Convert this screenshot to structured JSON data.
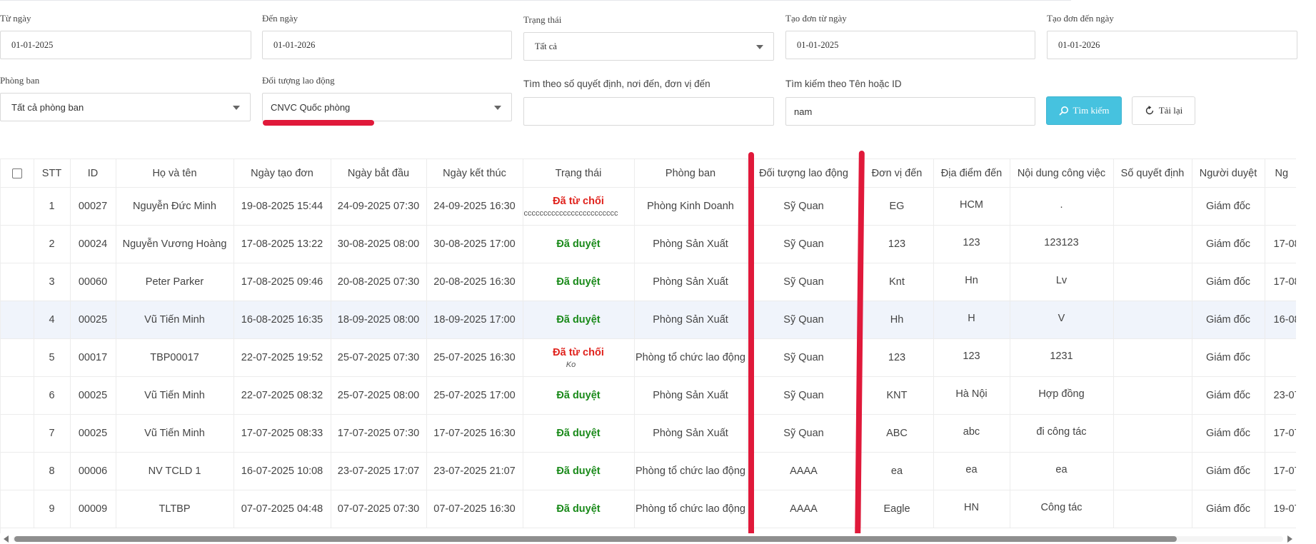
{
  "filters": {
    "from_date": {
      "label": "Từ ngày",
      "value": "01-01-2025"
    },
    "to_date": {
      "label": "Đến ngày",
      "value": "01-01-2026"
    },
    "status": {
      "label": "Trạng thái",
      "value": "Tất cả"
    },
    "created_from": {
      "label": "Tạo đơn từ ngày",
      "value": "01-01-2025"
    },
    "created_to": {
      "label": "Tạo đơn đến ngày",
      "value": "01-01-2026"
    },
    "department": {
      "label": "Phòng ban",
      "value": "Tất cả phòng ban"
    },
    "labor_object": {
      "label": "Đối tượng lao động",
      "value": "CNVC Quốc phòng"
    },
    "search_decision": {
      "label": "Tìm theo số quyết định, nơi đến, đơn vị đến",
      "value": ""
    },
    "search_name": {
      "label": "Tìm kiếm theo Tên hoặc ID",
      "value": "nam"
    }
  },
  "buttons": {
    "search": "Tìm kiếm",
    "reload": "Tải lại"
  },
  "table": {
    "headers": [
      "STT",
      "ID",
      "Họ và tên",
      "Ngày tạo đơn",
      "Ngày bắt đầu",
      "Ngày kết thúc",
      "Trạng thái",
      "Phòng ban",
      "Đối tượng lao động",
      "Đơn vị đến",
      "Địa điểm đến",
      "Nội dung công việc",
      "Số quyết định",
      "Người duyệt",
      "Ng"
    ],
    "rows": [
      {
        "stt": "1",
        "id": "00027",
        "name": "Nguyễn Đức Minh",
        "created": "19-08-2025 15:44",
        "start": "24-09-2025 07:30",
        "end": "24-09-2025 16:30",
        "status": "Đã từ chối",
        "status_note": "cccccccccccccccccccccccc",
        "dept": "Phòng Kinh Doanh",
        "object": "Sỹ Quan",
        "unit": "EG",
        "place": "HCM",
        "content": ".",
        "decision": "",
        "approver": "Giám đốc",
        "extra": ""
      },
      {
        "stt": "2",
        "id": "00024",
        "name": "Nguyễn Vương Hoàng",
        "created": "17-08-2025 13:22",
        "start": "30-08-2025 08:00",
        "end": "30-08-2025 17:00",
        "status": "Đã duyệt",
        "status_note": "",
        "dept": "Phòng Sản Xuất",
        "object": "Sỹ Quan",
        "unit": "123",
        "place": "123",
        "content": "123123",
        "decision": "",
        "approver": "Giám đốc",
        "extra": "17-08"
      },
      {
        "stt": "3",
        "id": "00060",
        "name": "Peter Parker",
        "created": "17-08-2025 09:46",
        "start": "20-08-2025 07:30",
        "end": "20-08-2025 16:30",
        "status": "Đã duyệt",
        "status_note": "",
        "dept": "Phòng Sản Xuất",
        "object": "Sỹ Quan",
        "unit": "Knt",
        "place": "Hn",
        "content": "Lv",
        "decision": "",
        "approver": "Giám đốc",
        "extra": "17-08"
      },
      {
        "stt": "4",
        "id": "00025",
        "name": "Vũ Tiến Minh",
        "created": "16-08-2025 16:35",
        "start": "18-09-2025 08:00",
        "end": "18-09-2025 17:00",
        "status": "Đã duyệt",
        "status_note": "",
        "dept": "Phòng Sản Xuất",
        "object": "Sỹ Quan",
        "unit": "Hh",
        "place": "H",
        "content": "V",
        "decision": "",
        "approver": "Giám đốc",
        "extra": "16-08"
      },
      {
        "stt": "5",
        "id": "00017",
        "name": "TBP00017",
        "created": "22-07-2025 19:52",
        "start": "25-07-2025 07:30",
        "end": "25-07-2025 16:30",
        "status": "Đã từ chối",
        "status_note": "Ko",
        "dept": "Phòng tổ chức lao động",
        "object": "Sỹ Quan",
        "unit": "123",
        "place": "123",
        "content": "1231",
        "decision": "",
        "approver": "Giám đốc",
        "extra": ""
      },
      {
        "stt": "6",
        "id": "00025",
        "name": "Vũ Tiến Minh",
        "created": "22-07-2025 08:32",
        "start": "25-07-2025 08:00",
        "end": "25-07-2025 17:00",
        "status": "Đã duyệt",
        "status_note": "",
        "dept": "Phòng Sản Xuất",
        "object": "Sỹ Quan",
        "unit": "KNT",
        "place": "Hà Nội",
        "content": "Hợp đồng",
        "decision": "",
        "approver": "Giám đốc",
        "extra": "23-07"
      },
      {
        "stt": "7",
        "id": "00025",
        "name": "Vũ Tiến Minh",
        "created": "17-07-2025 08:33",
        "start": "17-07-2025 07:30",
        "end": "17-07-2025 16:30",
        "status": "Đã duyệt",
        "status_note": "",
        "dept": "Phòng Sản Xuất",
        "object": "Sỹ Quan",
        "unit": "ABC",
        "place": "abc",
        "content": "đi công tác",
        "decision": "",
        "approver": "Giám đốc",
        "extra": "17-07"
      },
      {
        "stt": "8",
        "id": "00006",
        "name": "NV TCLD 1",
        "created": "16-07-2025 10:08",
        "start": "23-07-2025 17:07",
        "end": "23-07-2025 21:07",
        "status": "Đã duyệt",
        "status_note": "",
        "dept": "Phòng tổ chức lao động",
        "object": "AAAA",
        "unit": "ea",
        "place": "ea",
        "content": "ea",
        "decision": "",
        "approver": "Giám đốc",
        "extra": "17-07"
      },
      {
        "stt": "9",
        "id": "00009",
        "name": "TLTBP",
        "created": "07-07-2025 04:48",
        "start": "07-07-2025 07:30",
        "end": "07-07-2025 16:30",
        "status": "Đã duyệt",
        "status_note": "",
        "dept": "Phòng tổ chức lao động",
        "object": "AAAA",
        "unit": "Eagle",
        "place": "HN",
        "content": "Công tác",
        "decision": "",
        "approver": "Giám đốc",
        "extra": "19-07"
      }
    ]
  },
  "colors": {
    "approved": "#1a8a1a",
    "rejected": "#e0231d",
    "search_button": "#46c2df",
    "annotation": "#e0193a"
  }
}
